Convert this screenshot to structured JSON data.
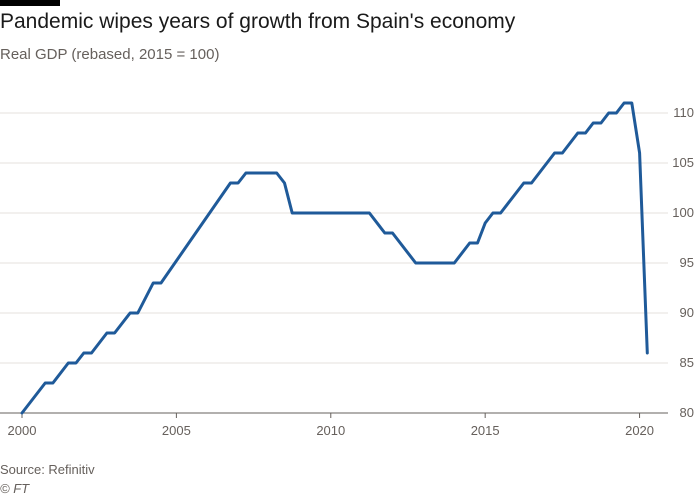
{
  "header": {
    "title": "Pandemic wipes years of growth from Spain's economy",
    "subtitle": "Real GDP (rebased, 2015 = 100)"
  },
  "footer": {
    "source": "Source: Refinitiv",
    "credit": "© FT"
  },
  "colors": {
    "line": "#1f5a99",
    "grid": "#e6e1dd",
    "axis": "#66605c",
    "title": "#1a1a1a",
    "accent_bar": "#000000"
  },
  "chart_data": {
    "type": "line",
    "title": "Pandemic wipes years of growth from Spain's economy",
    "subtitle": "Real GDP (rebased, 2015 = 100)",
    "xlabel": "",
    "ylabel": "",
    "xlim": [
      2000,
      2020.5
    ],
    "ylim": [
      80,
      110
    ],
    "grid": true,
    "legend": "none",
    "x_ticks": [
      2000,
      2005,
      2010,
      2015,
      2020
    ],
    "x_tick_labels": [
      "2000",
      "2005",
      "2010",
      "2015",
      "2020"
    ],
    "y_ticks": [
      80,
      85,
      90,
      95,
      100,
      105,
      110
    ],
    "y_tick_labels": [
      "80",
      "85",
      "90",
      "95",
      "100",
      "105",
      "110"
    ],
    "y_axis_position": "right",
    "series": [
      {
        "x": [
          2000.0,
          2000.75,
          2001.0,
          2001.5,
          2001.75,
          2002.0,
          2002.25,
          2002.75,
          2003.0,
          2003.5,
          2003.75,
          2004.25,
          2004.5,
          2006.75,
          2007.0,
          2007.25,
          2008.25,
          2008.5,
          2008.75,
          2009.0,
          2009.25,
          2011.25,
          2011.75,
          2012.0,
          2012.75,
          2013.0,
          2013.75,
          2014.0,
          2014.5,
          2014.75,
          2015.0,
          2015.25,
          2015.5,
          2016.25,
          2016.5,
          2017.25,
          2017.5,
          2018.0,
          2018.25,
          2018.5,
          2018.75,
          2019.0,
          2019.25,
          2019.5,
          2019.75,
          2020.0,
          2020.25
        ],
        "values": [
          80.0,
          83.0,
          83.0,
          85.0,
          85.0,
          86.0,
          86.0,
          88.0,
          88.0,
          90.0,
          90.0,
          93.0,
          93.0,
          103.0,
          103.0,
          104.0,
          104.0,
          103.0,
          100.0,
          100.0,
          100.0,
          100.0,
          98.0,
          98.0,
          95.0,
          95.0,
          95.0,
          95.0,
          97.0,
          97.0,
          99.0,
          100.0,
          100.0,
          103.0,
          103.0,
          106.0,
          106.0,
          108.0,
          108.0,
          109.0,
          109.0,
          110.0,
          110.0,
          111.0,
          111.0,
          106.0,
          86.0
        ]
      }
    ]
  }
}
